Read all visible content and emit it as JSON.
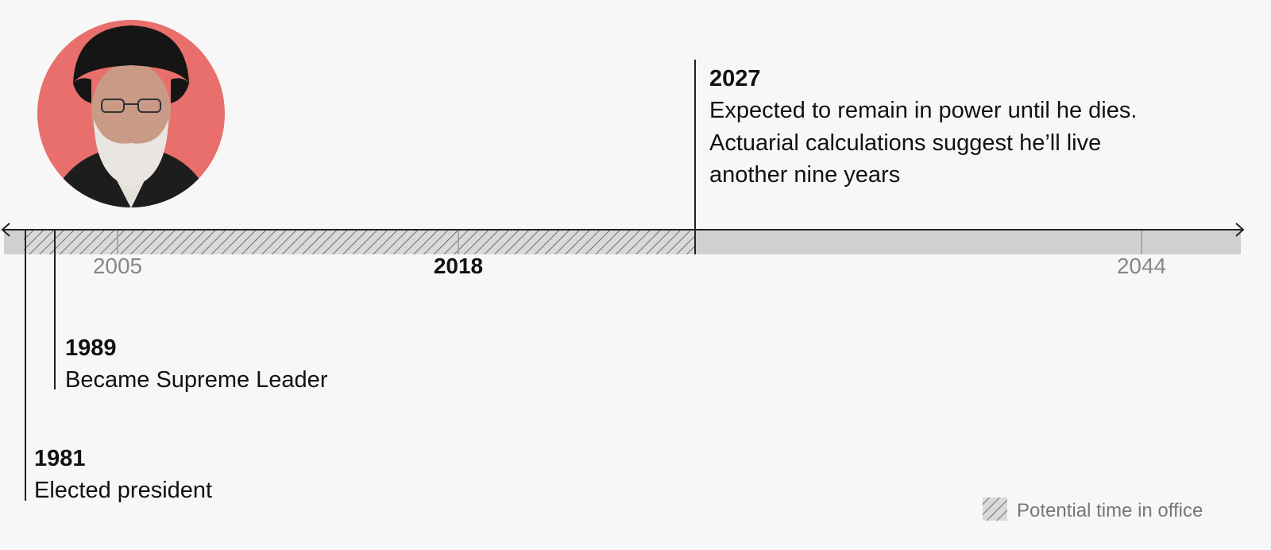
{
  "axis": {
    "ticks": [
      "2005",
      "2018",
      "2044"
    ]
  },
  "events": [
    {
      "year": "2027",
      "lines": [
        "Expected to remain in power until he dies.",
        "Actuarial calculations suggest he’ll live",
        "another nine years"
      ]
    },
    {
      "year": "1989",
      "lines": [
        "Became Supreme Leader"
      ]
    },
    {
      "year": "1981",
      "lines": [
        "Elected president"
      ]
    }
  ],
  "legend": {
    "label": "Potential time in office"
  }
}
